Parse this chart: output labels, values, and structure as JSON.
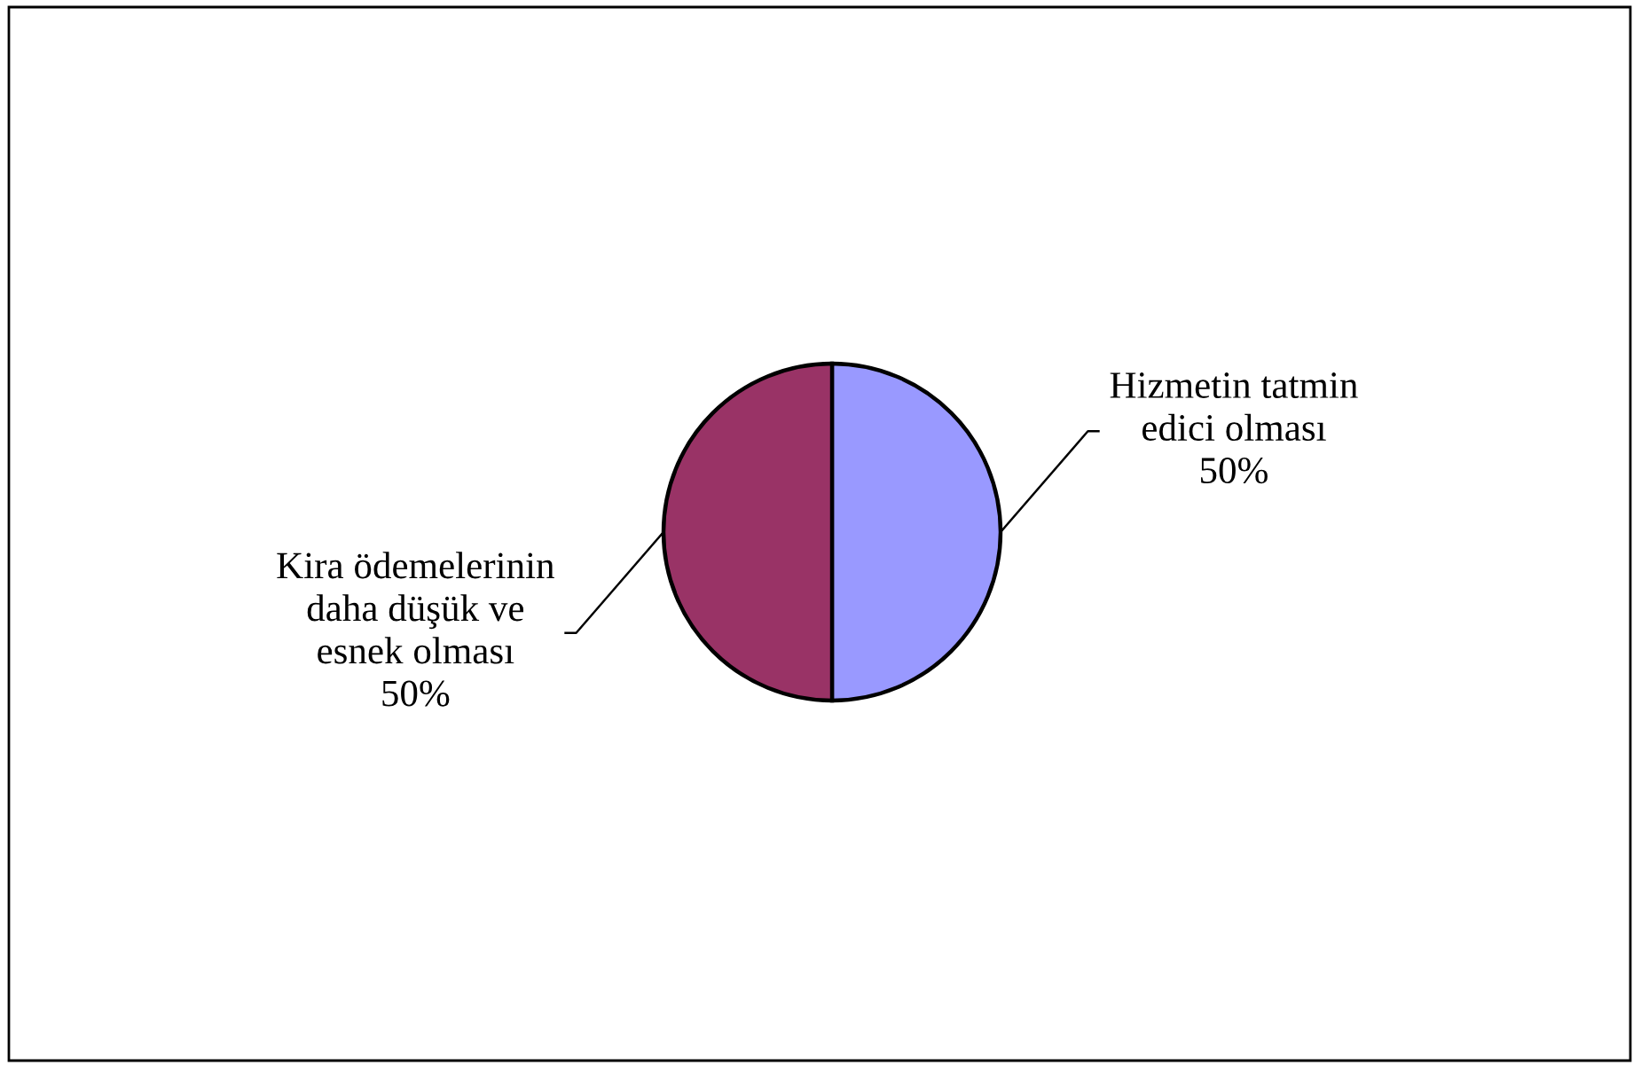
{
  "chart_data": {
    "type": "pie",
    "categories": [
      "Hizmetin tatmin edici olması",
      "Kira ödemelerinin daha düşük ve esnek olması"
    ],
    "values": [
      50,
      50
    ],
    "colors": [
      "#9999ff",
      "#993366"
    ],
    "value_labels": [
      "50%",
      "50%"
    ]
  }
}
